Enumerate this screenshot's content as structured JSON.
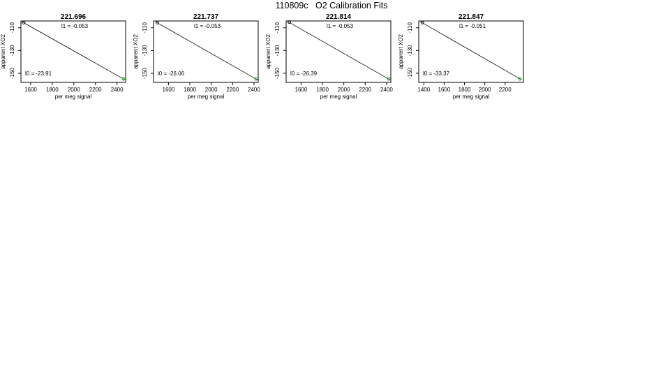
{
  "page_title": "110809c   O2 Calibration Fits",
  "chart_data": [
    {
      "type": "scatter",
      "title": "221.696",
      "xlabel": "per meg signal",
      "ylabel": "apparent XO2",
      "xlim": [
        1510,
        2480
      ],
      "ylim": [
        -158,
        -104
      ],
      "xticks": [
        1600,
        1800,
        2000,
        2200,
        2400
      ],
      "yticks": [
        -110,
        -130,
        -150
      ],
      "annotations": {
        "slope_label": "l1 =",
        "slope_value": "-0.053",
        "intercept_label": "l0 =",
        "intercept_value": "-23.91"
      },
      "points": [
        {
          "x": 1535,
          "y": -105.5,
          "color": "#000000"
        },
        {
          "x": 2460,
          "y": -155.0,
          "color": "#00aa00"
        }
      ],
      "fit_line": [
        {
          "x": 1525,
          "y": -105.0
        },
        {
          "x": 2470,
          "y": -155.5
        }
      ]
    },
    {
      "type": "scatter",
      "title": "221.737",
      "xlabel": "per meg signal",
      "ylabel": "apparent XO2",
      "xlim": [
        1460,
        2440
      ],
      "ylim": [
        -158,
        -104
      ],
      "xticks": [
        1600,
        1800,
        2000,
        2200,
        2400
      ],
      "yticks": [
        -110,
        -130,
        -150
      ],
      "annotations": {
        "slope_label": "l1 =",
        "slope_value": "-0.053",
        "intercept_label": "l0 =",
        "intercept_value": "-26.06"
      },
      "points": [
        {
          "x": 1495,
          "y": -105.5,
          "color": "#000000"
        },
        {
          "x": 2420,
          "y": -155.0,
          "color": "#00aa00"
        }
      ],
      "fit_line": [
        {
          "x": 1480,
          "y": -104.8
        },
        {
          "x": 2430,
          "y": -155.6
        }
      ]
    },
    {
      "type": "scatter",
      "title": "221.814",
      "xlabel": "per meg signal",
      "ylabel": "apparent XO2",
      "xlim": [
        1460,
        2440
      ],
      "ylim": [
        -158,
        -104
      ],
      "xticks": [
        1600,
        1800,
        2000,
        2200,
        2400
      ],
      "yticks": [
        -110,
        -130,
        -150
      ],
      "annotations": {
        "slope_label": "l1 =",
        "slope_value": "-0.053",
        "intercept_label": "l0 =",
        "intercept_value": "-26.39"
      },
      "points": [
        {
          "x": 1490,
          "y": -105.0,
          "color": "#000000"
        },
        {
          "x": 2420,
          "y": -155.0,
          "color": "#00aa00"
        }
      ],
      "fit_line": [
        {
          "x": 1475,
          "y": -104.5
        },
        {
          "x": 2430,
          "y": -155.6
        }
      ]
    },
    {
      "type": "scatter",
      "title": "221.847",
      "xlabel": "per meg signal",
      "ylabel": "apparent XO2",
      "xlim": [
        1350,
        2380
      ],
      "ylim": [
        -158,
        -104
      ],
      "xticks": [
        1400,
        1600,
        1800,
        2000,
        2200
      ],
      "yticks": [
        -110,
        -130,
        -150
      ],
      "annotations": {
        "slope_label": "l1 =",
        "slope_value": "-0.051",
        "intercept_label": "l0 =",
        "intercept_value": "-33.37"
      },
      "points": [
        {
          "x": 1385,
          "y": -105.5,
          "color": "#000000"
        },
        {
          "x": 2345,
          "y": -155.0,
          "color": "#00aa00"
        }
      ],
      "fit_line": [
        {
          "x": 1370,
          "y": -104.8
        },
        {
          "x": 2360,
          "y": -155.6
        }
      ]
    }
  ]
}
